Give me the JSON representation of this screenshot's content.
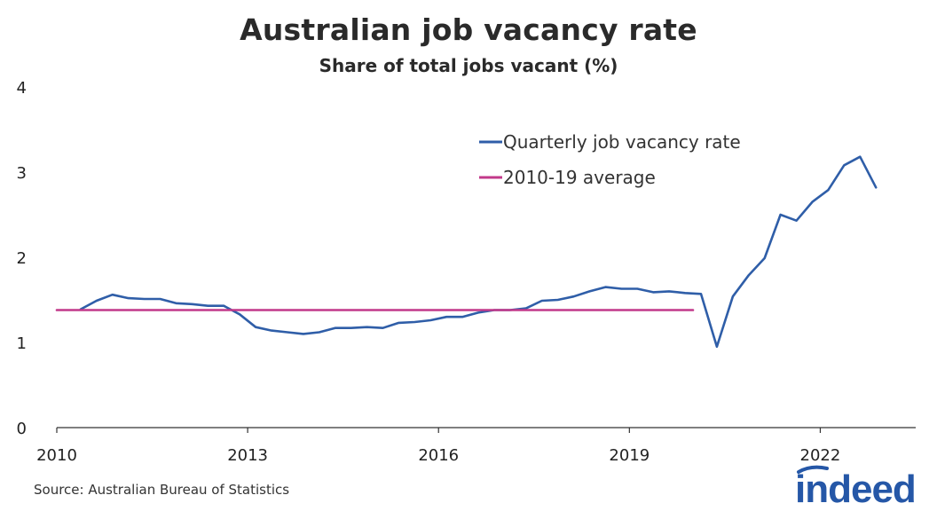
{
  "chart_data": {
    "type": "line",
    "title": "Australian job vacancy rate",
    "subtitle": "Share of total jobs vacant (%)",
    "xlabel": "",
    "ylabel": "",
    "xlim": [
      2010,
      2023.5
    ],
    "ylim": [
      0,
      4
    ],
    "x_ticks": [
      2010,
      2013,
      2016,
      2019,
      2022
    ],
    "y_ticks": [
      0,
      1,
      2,
      3,
      4
    ],
    "grid": false,
    "legend_position": "top-right",
    "series": [
      {
        "name": "Quarterly job vacancy rate",
        "color": "#2f5ea8",
        "points": [
          [
            2010.375,
            1.39
          ],
          [
            2010.625,
            1.49
          ],
          [
            2010.875,
            1.56
          ],
          [
            2011.125,
            1.52
          ],
          [
            2011.375,
            1.51
          ],
          [
            2011.625,
            1.51
          ],
          [
            2011.875,
            1.46
          ],
          [
            2012.125,
            1.45
          ],
          [
            2012.375,
            1.43
          ],
          [
            2012.625,
            1.43
          ],
          [
            2012.875,
            1.33
          ],
          [
            2013.125,
            1.18
          ],
          [
            2013.375,
            1.14
          ],
          [
            2013.625,
            1.12
          ],
          [
            2013.875,
            1.1
          ],
          [
            2014.125,
            1.12
          ],
          [
            2014.375,
            1.17
          ],
          [
            2014.625,
            1.17
          ],
          [
            2014.875,
            1.18
          ],
          [
            2015.125,
            1.17
          ],
          [
            2015.375,
            1.23
          ],
          [
            2015.625,
            1.24
          ],
          [
            2015.875,
            1.26
          ],
          [
            2016.125,
            1.3
          ],
          [
            2016.375,
            1.3
          ],
          [
            2016.625,
            1.35
          ],
          [
            2016.875,
            1.38
          ],
          [
            2017.125,
            1.38
          ],
          [
            2017.375,
            1.4
          ],
          [
            2017.625,
            1.49
          ],
          [
            2017.875,
            1.5
          ],
          [
            2018.125,
            1.54
          ],
          [
            2018.375,
            1.6
          ],
          [
            2018.625,
            1.65
          ],
          [
            2018.875,
            1.63
          ],
          [
            2019.125,
            1.63
          ],
          [
            2019.375,
            1.59
          ],
          [
            2019.625,
            1.6
          ],
          [
            2019.875,
            1.58
          ],
          [
            2020.125,
            1.57
          ],
          [
            2020.375,
            0.95
          ],
          [
            2020.625,
            1.54
          ],
          [
            2020.875,
            1.79
          ],
          [
            2021.125,
            1.99
          ],
          [
            2021.375,
            2.5
          ],
          [
            2021.625,
            2.43
          ],
          [
            2021.875,
            2.65
          ],
          [
            2022.125,
            2.79
          ],
          [
            2022.375,
            3.08
          ],
          [
            2022.625,
            3.18
          ],
          [
            2022.875,
            2.82
          ]
        ]
      },
      {
        "name": "2010-19 average",
        "color": "#c2398a",
        "points": [
          [
            2010.0,
            1.38
          ],
          [
            2020.0,
            1.38
          ]
        ]
      }
    ]
  },
  "footer": {
    "source": "Source: Australian Bureau of Statistics",
    "logo_text": "indeed"
  }
}
